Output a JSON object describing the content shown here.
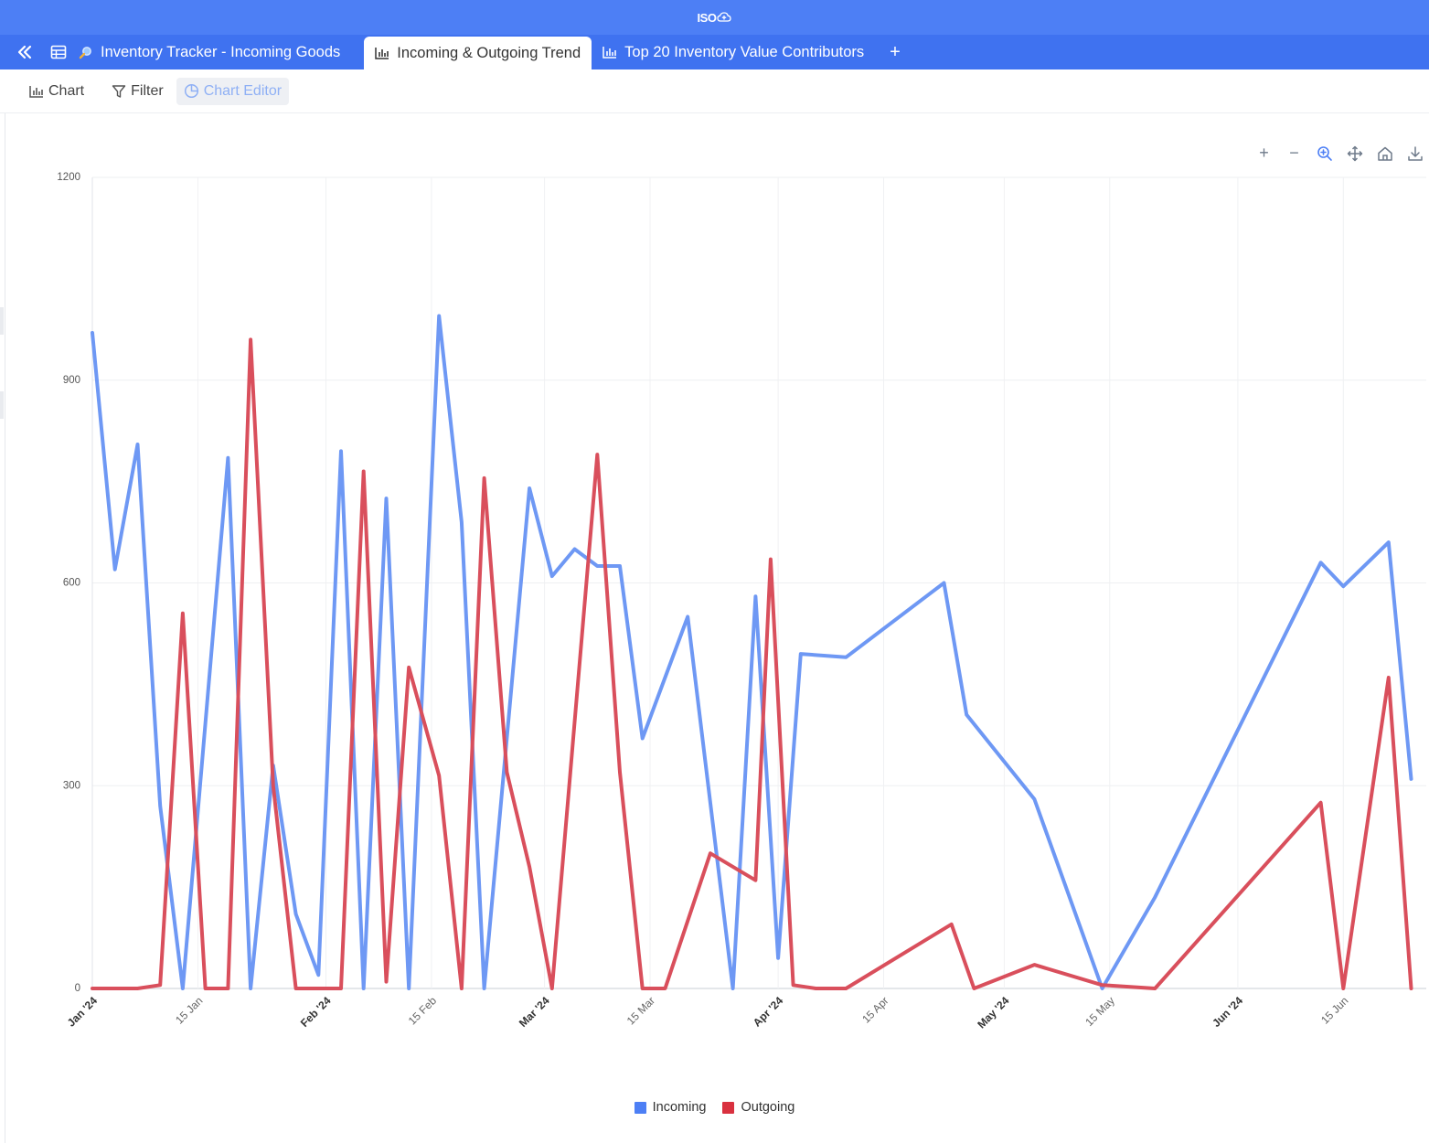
{
  "app": {
    "logo_text": "ISO",
    "logo_icon": "cloud-plus-icon"
  },
  "tabs": [
    {
      "label": "Inventory Tracker - Incoming Goods",
      "icon": "search-icon",
      "active": false
    },
    {
      "label": "Incoming & Outgoing Trend",
      "icon": "bar-chart-icon",
      "active": true
    },
    {
      "label": "Top 20 Inventory Value Contributors",
      "icon": "bar-chart-icon",
      "active": false
    }
  ],
  "tab_add_label": "+",
  "toolbar": {
    "chart_label": "Chart",
    "filter_label": "Filter",
    "chart_editor_label": "Chart Editor"
  },
  "chart_tools": [
    {
      "name": "zoom-in",
      "glyph": "+"
    },
    {
      "name": "zoom-out",
      "glyph": "−"
    },
    {
      "name": "selection-zoom",
      "glyph": ""
    },
    {
      "name": "pan",
      "glyph": ""
    },
    {
      "name": "reset-home",
      "glyph": ""
    },
    {
      "name": "download",
      "glyph": ""
    }
  ],
  "chart_data": {
    "type": "line",
    "title": "",
    "xlabel": "",
    "ylabel": "",
    "ylim": [
      0,
      1200
    ],
    "yticks": [
      0,
      300,
      600,
      900,
      1200
    ],
    "xlim": [
      "2024-01-01",
      "2024-06-26"
    ],
    "xticks": [
      {
        "date": "2024-01-01",
        "label": "Jan '24"
      },
      {
        "date": "2024-01-15",
        "label": "15 Jan"
      },
      {
        "date": "2024-02-01",
        "label": "Feb '24"
      },
      {
        "date": "2024-02-15",
        "label": "15 Feb"
      },
      {
        "date": "2024-03-01",
        "label": "Mar '24"
      },
      {
        "date": "2024-03-15",
        "label": "15 Mar"
      },
      {
        "date": "2024-04-01",
        "label": "Apr '24"
      },
      {
        "date": "2024-04-15",
        "label": "15 Apr"
      },
      {
        "date": "2024-05-01",
        "label": "May '24"
      },
      {
        "date": "2024-05-15",
        "label": "15 May"
      },
      {
        "date": "2024-06-01",
        "label": "Jun '24"
      },
      {
        "date": "2024-06-15",
        "label": "15 Jun"
      }
    ],
    "grid": true,
    "legend_position": "bottom-center",
    "series": [
      {
        "name": "Incoming",
        "color": "#6e98f4",
        "points": [
          [
            "2024-01-01",
            970
          ],
          [
            "2024-01-04",
            620
          ],
          [
            "2024-01-07",
            805
          ],
          [
            "2024-01-10",
            270
          ],
          [
            "2024-01-13",
            0
          ],
          [
            "2024-01-19",
            785
          ],
          [
            "2024-01-22",
            0
          ],
          [
            "2024-01-25",
            330
          ],
          [
            "2024-01-28",
            110
          ],
          [
            "2024-01-31",
            20
          ],
          [
            "2024-02-03",
            795
          ],
          [
            "2024-02-06",
            0
          ],
          [
            "2024-02-09",
            725
          ],
          [
            "2024-02-12",
            0
          ],
          [
            "2024-02-16",
            995
          ],
          [
            "2024-02-19",
            690
          ],
          [
            "2024-02-22",
            0
          ],
          [
            "2024-02-28",
            740
          ],
          [
            "2024-03-02",
            610
          ],
          [
            "2024-03-05",
            650
          ],
          [
            "2024-03-08",
            625
          ],
          [
            "2024-03-11",
            625
          ],
          [
            "2024-03-14",
            370
          ],
          [
            "2024-03-20",
            550
          ],
          [
            "2024-03-26",
            0
          ],
          [
            "2024-03-29",
            580
          ],
          [
            "2024-04-01",
            45
          ],
          [
            "2024-04-04",
            495
          ],
          [
            "2024-04-10",
            490
          ],
          [
            "2024-04-23",
            600
          ],
          [
            "2024-04-26",
            405
          ],
          [
            "2024-05-05",
            280
          ],
          [
            "2024-05-14",
            0
          ],
          [
            "2024-05-21",
            135
          ],
          [
            "2024-06-12",
            630
          ],
          [
            "2024-06-15",
            595
          ],
          [
            "2024-06-21",
            660
          ],
          [
            "2024-06-24",
            310
          ]
        ]
      },
      {
        "name": "Outgoing",
        "color": "#d94f5c",
        "points": [
          [
            "2024-01-01",
            0
          ],
          [
            "2024-01-04",
            0
          ],
          [
            "2024-01-07",
            0
          ],
          [
            "2024-01-10",
            5
          ],
          [
            "2024-01-13",
            555
          ],
          [
            "2024-01-16",
            0
          ],
          [
            "2024-01-19",
            0
          ],
          [
            "2024-01-22",
            960
          ],
          [
            "2024-01-25",
            300
          ],
          [
            "2024-01-28",
            0
          ],
          [
            "2024-01-31",
            0
          ],
          [
            "2024-02-03",
            0
          ],
          [
            "2024-02-06",
            765
          ],
          [
            "2024-02-09",
            10
          ],
          [
            "2024-02-12",
            475
          ],
          [
            "2024-02-16",
            315
          ],
          [
            "2024-02-19",
            0
          ],
          [
            "2024-02-22",
            755
          ],
          [
            "2024-02-25",
            320
          ],
          [
            "2024-02-28",
            180
          ],
          [
            "2024-03-02",
            0
          ],
          [
            "2024-03-08",
            790
          ],
          [
            "2024-03-11",
            320
          ],
          [
            "2024-03-14",
            0
          ],
          [
            "2024-03-17",
            0
          ],
          [
            "2024-03-23",
            200
          ],
          [
            "2024-03-29",
            160
          ],
          [
            "2024-03-31",
            635
          ],
          [
            "2024-04-03",
            5
          ],
          [
            "2024-04-06",
            0
          ],
          [
            "2024-04-10",
            0
          ],
          [
            "2024-04-24",
            95
          ],
          [
            "2024-04-27",
            0
          ],
          [
            "2024-05-05",
            35
          ],
          [
            "2024-05-14",
            5
          ],
          [
            "2024-05-21",
            0
          ],
          [
            "2024-06-12",
            275
          ],
          [
            "2024-06-15",
            0
          ],
          [
            "2024-06-21",
            460
          ],
          [
            "2024-06-24",
            0
          ]
        ]
      }
    ]
  }
}
